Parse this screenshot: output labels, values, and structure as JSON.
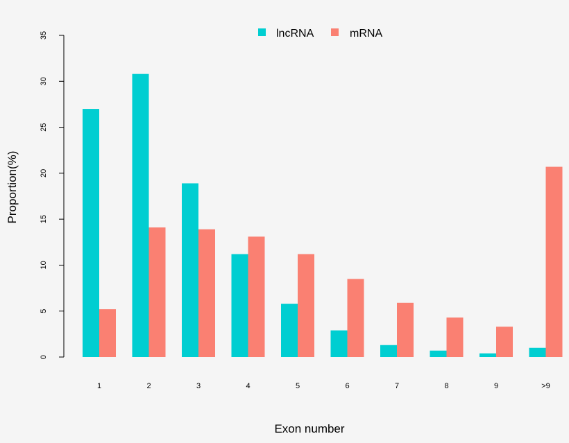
{
  "chart_data": {
    "type": "bar",
    "title": "",
    "xlabel": "Exon number",
    "ylabel": "Proportion(%)",
    "ylim": [
      0,
      35
    ],
    "yticks": [
      0,
      5,
      10,
      15,
      20,
      25,
      30,
      35
    ],
    "categories": [
      "1",
      "2",
      "3",
      "4",
      "5",
      "6",
      "7",
      "8",
      "9",
      ">9"
    ],
    "series": [
      {
        "name": "lncRNA",
        "color": "#00ced1",
        "values": [
          27.0,
          30.8,
          18.9,
          11.2,
          5.8,
          2.9,
          1.3,
          0.7,
          0.4,
          1.0
        ]
      },
      {
        "name": "mRNA",
        "color": "#fa8072",
        "values": [
          5.2,
          14.1,
          13.9,
          13.1,
          11.2,
          8.5,
          5.9,
          4.3,
          3.3,
          20.7
        ]
      }
    ],
    "legend_position": "top-center",
    "grid": false
  }
}
